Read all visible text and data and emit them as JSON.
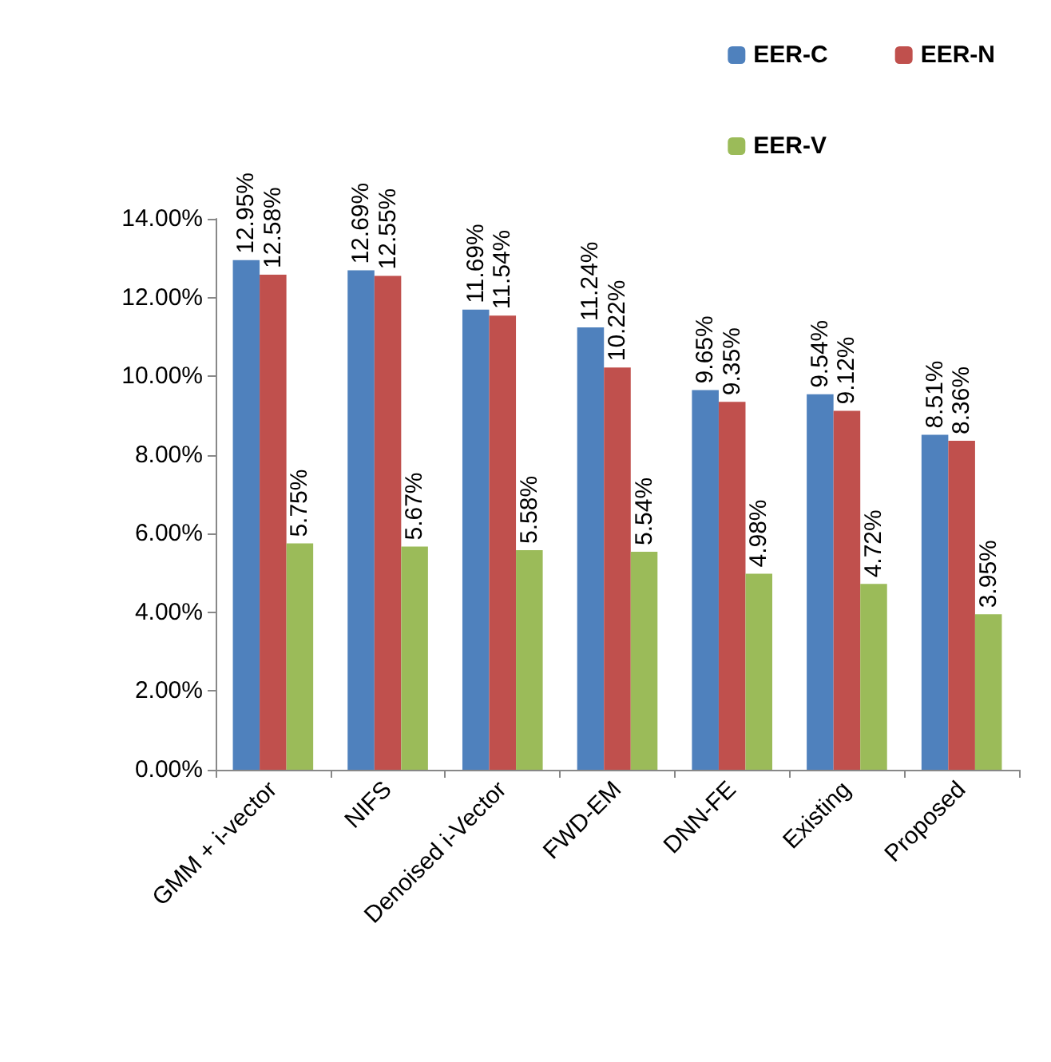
{
  "chart_data": {
    "type": "bar",
    "categories": [
      "GMM + i-vector",
      "NIFS",
      "Denoised i-Vector",
      "FWD-EM",
      "DNN-FE",
      "Existing",
      "Proposed"
    ],
    "series": [
      {
        "name": "EER-C",
        "color": "#4f81bd",
        "values": [
          12.95,
          12.69,
          11.69,
          11.24,
          9.65,
          9.54,
          8.51
        ],
        "value_labels": [
          "12.95%",
          "12.69%",
          "11.69%",
          "11.24%",
          "9.65%",
          "9.54%",
          "8.51%"
        ]
      },
      {
        "name": "EER-N",
        "color": "#c0504d",
        "values": [
          12.58,
          12.55,
          11.54,
          10.22,
          9.35,
          9.12,
          8.36
        ],
        "value_labels": [
          "12.58%",
          "12.55%",
          "11.54%",
          "10.22%",
          "9.35%",
          "9.12%",
          "8.36%"
        ]
      },
      {
        "name": "EER-V",
        "color": "#9bbb59",
        "values": [
          5.75,
          5.67,
          5.58,
          5.54,
          4.98,
          4.72,
          3.95
        ],
        "value_labels": [
          "5.75%",
          "5.67%",
          "5.58%",
          "5.54%",
          "4.98%",
          "4.72%",
          "3.95%"
        ]
      }
    ],
    "ylim": [
      0,
      14
    ],
    "yticks": [
      {
        "value": 0,
        "label": "0.00%"
      },
      {
        "value": 2,
        "label": "2.00%"
      },
      {
        "value": 4,
        "label": "4.00%"
      },
      {
        "value": 6,
        "label": "6.00%"
      },
      {
        "value": 8,
        "label": "8.00%"
      },
      {
        "value": 10,
        "label": "10.00%"
      },
      {
        "value": 12,
        "label": "12.00%"
      },
      {
        "value": 14,
        "label": "14.00%"
      }
    ],
    "grid": false,
    "legend": "top right"
  }
}
